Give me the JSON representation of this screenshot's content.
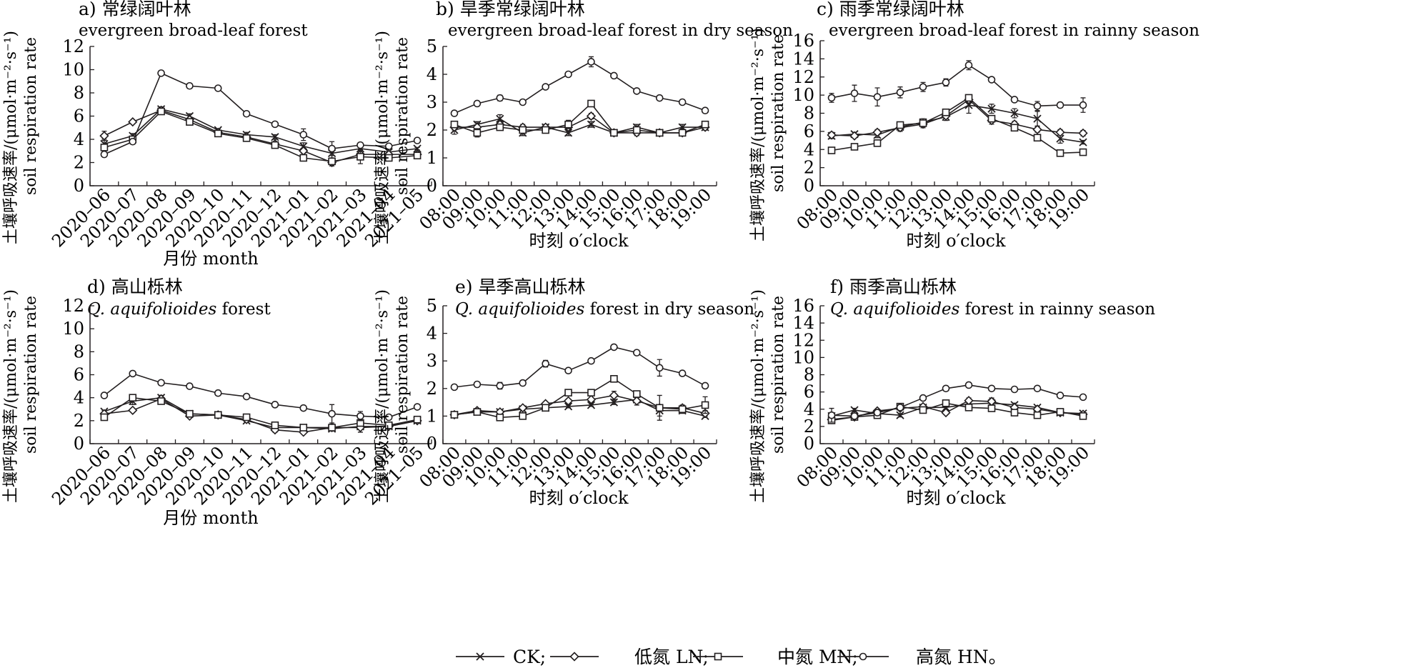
{
  "yaxis_label": {
    "line1": "土壤呼吸速率/(μmol·m⁻²·s⁻¹)",
    "line2": "soil respiration rate"
  },
  "legend": [
    {
      "marker": "cross",
      "text": "CK;"
    },
    {
      "marker": "diamond",
      "text": "低氮 LN;"
    },
    {
      "marker": "square",
      "text": "中氮 MN;"
    },
    {
      "marker": "circle",
      "text": "高氮 HN。"
    }
  ],
  "colors": {
    "ink": "#231f20",
    "background": "#ffffff"
  },
  "chart_data": [
    {
      "id": "a",
      "type": "line",
      "title": "a) 常绿阔叶林",
      "subtitle": "evergreen broad-leaf forest",
      "xlabel": "月份  month",
      "ylabel": "土壤呼吸速率/(μmol·m⁻²·s⁻¹) soil respiration rate",
      "ylim": [
        0,
        12
      ],
      "yticks": [
        0,
        2,
        4,
        6,
        8,
        10,
        12
      ],
      "categories": [
        "2020–06",
        "2020–07",
        "2020–08",
        "2020–09",
        "2020–10",
        "2020–11",
        "2020–12",
        "2021–01",
        "2021–02",
        "2021–03",
        "2021–04",
        "2021–05"
      ],
      "series": [
        {
          "name": "CK",
          "marker": "cross",
          "values": [
            3.6,
            4.3,
            6.6,
            6.0,
            4.8,
            4.4,
            4.2,
            3.4,
            2.8,
            3.2,
            2.9,
            3.2
          ],
          "err": [
            0.4,
            0.2,
            0.2,
            0.2,
            0.1,
            0.2,
            0.2,
            0.3,
            0.5,
            0.4,
            0.3,
            0.1
          ]
        },
        {
          "name": "LN",
          "marker": "diamond",
          "values": [
            4.3,
            5.5,
            6.5,
            5.7,
            4.6,
            4.2,
            3.6,
            3.0,
            2.0,
            2.7,
            2.7,
            2.7
          ],
          "err": [
            0.4,
            0.1,
            0.2,
            0.2,
            0.1,
            0.1,
            0.1,
            0.2,
            0.3,
            0.3,
            0.2,
            0.1
          ]
        },
        {
          "name": "MN",
          "marker": "square",
          "values": [
            3.3,
            4.0,
            6.4,
            5.5,
            4.5,
            4.1,
            3.5,
            2.4,
            2.1,
            2.5,
            2.4,
            2.6
          ],
          "err": [
            0.2,
            0.1,
            0.2,
            0.2,
            0.1,
            0.1,
            0.1,
            0.2,
            0.3,
            0.6,
            0.2,
            0.1
          ]
        },
        {
          "name": "HN",
          "marker": "circle",
          "values": [
            2.7,
            3.8,
            9.7,
            8.6,
            8.4,
            6.2,
            5.3,
            4.4,
            3.2,
            3.5,
            3.4,
            3.9
          ],
          "err": [
            0.1,
            0.1,
            0.1,
            0.1,
            0.1,
            0.1,
            0.1,
            0.5,
            0.6,
            0.2,
            0.1,
            0.1
          ]
        }
      ]
    },
    {
      "id": "b",
      "type": "line",
      "title": "b) 旱季常绿阔叶林",
      "subtitle": "evergreen broad-leaf forest in dry season",
      "xlabel": "时刻 o′clock",
      "ylabel": "土壤呼吸速率/(μmol·m⁻²·s⁻¹) soil respiration rate",
      "ylim": [
        0,
        5
      ],
      "yticks": [
        0,
        1,
        2,
        3,
        4,
        5
      ],
      "categories": [
        "08:00",
        "09:00",
        "10:00",
        "11:00",
        "12:00",
        "13:00",
        "14:00",
        "15:00",
        "16:00",
        "17:00",
        "18:00",
        "19:00"
      ],
      "series": [
        {
          "name": "CK",
          "marker": "cross",
          "values": [
            2.0,
            2.2,
            2.4,
            1.9,
            2.1,
            1.9,
            2.2,
            1.9,
            2.1,
            1.9,
            2.1,
            2.1
          ],
          "err": [
            0.15,
            0.1,
            0.15,
            0.1,
            0.1,
            0.1,
            0.1,
            0.1,
            0.1,
            0.1,
            0.1,
            0.1
          ]
        },
        {
          "name": "LN",
          "marker": "diamond",
          "values": [
            2.1,
            2.1,
            2.2,
            2.1,
            2.1,
            2.1,
            2.5,
            1.9,
            1.9,
            1.9,
            1.9,
            2.1
          ],
          "err": [
            0.1,
            0.15,
            0.1,
            0.1,
            0.1,
            0.1,
            0.1,
            0.1,
            0.1,
            0.1,
            0.1,
            0.1
          ]
        },
        {
          "name": "MN",
          "marker": "square",
          "values": [
            2.2,
            1.9,
            2.1,
            2.0,
            2.0,
            2.2,
            2.95,
            1.9,
            2.0,
            1.9,
            1.9,
            2.2
          ],
          "err": [
            0.1,
            0.15,
            0.1,
            0.1,
            0.1,
            0.15,
            0.1,
            0.1,
            0.1,
            0.1,
            0.1,
            0.1
          ]
        },
        {
          "name": "HN",
          "marker": "circle",
          "values": [
            2.6,
            2.95,
            3.15,
            3.0,
            3.55,
            4.0,
            4.45,
            3.95,
            3.4,
            3.15,
            3.0,
            2.7
          ],
          "err": [
            0.05,
            0.05,
            0.1,
            0.05,
            0.07,
            0.07,
            0.18,
            0.08,
            0.05,
            0.05,
            0.05,
            0.05
          ]
        }
      ]
    },
    {
      "id": "c",
      "type": "line",
      "title": "c) 雨季常绿阔叶林",
      "subtitle": "evergreen broad-leaf forest in rainny season",
      "xlabel": "时刻 o′clock",
      "ylabel": "土壤呼吸速率/(μmol·m⁻²·s⁻¹) soil respiration rate",
      "ylim": [
        0,
        16
      ],
      "yticks": [
        0,
        2,
        4,
        6,
        8,
        10,
        12,
        14,
        16
      ],
      "categories": [
        "08:00",
        "09:00",
        "10:00",
        "11:00",
        "12:00",
        "13:00",
        "14:00",
        "15:00",
        "16:00",
        "17:00",
        "18:00",
        "19:00"
      ],
      "series": [
        {
          "name": "CK",
          "marker": "cross",
          "values": [
            5.5,
            5.7,
            5.6,
            6.5,
            7.0,
            7.6,
            8.9,
            8.5,
            8.0,
            7.4,
            5.2,
            4.8
          ],
          "err": [
            0.3,
            0.2,
            0.3,
            0.4,
            0.4,
            0.4,
            0.9,
            0.5,
            0.5,
            0.8,
            0.5,
            0.2
          ]
        },
        {
          "name": "LN",
          "marker": "diamond",
          "values": [
            5.6,
            5.5,
            5.9,
            6.4,
            6.8,
            7.7,
            9.5,
            7.2,
            6.8,
            6.2,
            5.9,
            5.8
          ],
          "err": [
            0.3,
            0.2,
            0.3,
            0.4,
            0.4,
            0.3,
            0.3,
            0.4,
            0.3,
            0.3,
            0.3,
            0.3
          ]
        },
        {
          "name": "MN",
          "marker": "square",
          "values": [
            3.9,
            4.3,
            4.7,
            6.7,
            6.9,
            8.1,
            9.7,
            7.4,
            6.4,
            5.3,
            3.6,
            3.7
          ],
          "err": [
            0.1,
            0.1,
            0.1,
            0.2,
            0.2,
            0.2,
            0.2,
            0.3,
            0.2,
            0.2,
            0.1,
            0.1
          ]
        },
        {
          "name": "HN",
          "marker": "circle",
          "values": [
            9.7,
            10.2,
            9.8,
            10.3,
            10.9,
            11.4,
            13.3,
            11.7,
            9.5,
            8.8,
            8.9,
            8.9
          ],
          "err": [
            0.5,
            0.9,
            1.0,
            0.6,
            0.5,
            0.4,
            0.5,
            0.2,
            0.2,
            0.5,
            0.2,
            0.8
          ]
        }
      ]
    },
    {
      "id": "d",
      "type": "line",
      "title": "d) 高山栎林",
      "subtitle": "Q. aquifolioides forest",
      "xlabel": "月份  month",
      "ylabel": "土壤呼吸速率/(μmol·m⁻²·s⁻¹) soil respiration rate",
      "ylim": [
        0,
        12
      ],
      "yticks": [
        0,
        2,
        4,
        6,
        8,
        10,
        12
      ],
      "categories": [
        "2020–06",
        "2020–07",
        "2020–08",
        "2020–09",
        "2020–10",
        "2020–11",
        "2020–12",
        "2021–01",
        "2021–02",
        "2021–03",
        "2021–04",
        "2021–05"
      ],
      "series": [
        {
          "name": "CK",
          "marker": "cross",
          "values": [
            2.8,
            3.7,
            4.0,
            2.6,
            2.5,
            2.0,
            1.4,
            1.4,
            1.3,
            1.5,
            1.5,
            2.0
          ],
          "err": [
            0.1,
            0.3,
            0.2,
            0.1,
            0.1,
            0.1,
            0.2,
            0.1,
            0.2,
            0.2,
            0.1,
            0.1
          ]
        },
        {
          "name": "LN",
          "marker": "diamond",
          "values": [
            2.6,
            2.9,
            3.9,
            2.4,
            2.5,
            2.1,
            1.2,
            1.0,
            1.4,
            1.4,
            1.5,
            2.0
          ],
          "err": [
            0.1,
            0.1,
            0.2,
            0.1,
            0.1,
            0.1,
            0.2,
            0.1,
            0.1,
            0.4,
            0.1,
            0.1
          ]
        },
        {
          "name": "MN",
          "marker": "square",
          "values": [
            2.3,
            4.0,
            3.7,
            2.6,
            2.5,
            2.3,
            1.6,
            1.4,
            1.4,
            1.8,
            1.6,
            2.1
          ],
          "err": [
            0.1,
            0.2,
            0.2,
            0.1,
            0.1,
            0.1,
            0.2,
            0.1,
            0.1,
            0.2,
            0.1,
            0.1
          ]
        },
        {
          "name": "HN",
          "marker": "circle",
          "values": [
            4.2,
            6.1,
            5.3,
            5.0,
            4.4,
            4.1,
            3.4,
            3.1,
            2.6,
            2.4,
            2.3,
            3.2
          ],
          "err": [
            0.1,
            0.1,
            0.1,
            0.1,
            0.1,
            0.1,
            0.2,
            0.1,
            0.8,
            0.4,
            0.1,
            0.1
          ]
        }
      ]
    },
    {
      "id": "e",
      "type": "line",
      "title": "e) 旱季高山栎林",
      "subtitle": "Q. aquifolioides forest in dry season",
      "xlabel": "时刻 o′clock",
      "ylabel": "土壤呼吸速率/(μmol·m⁻²·s⁻¹) soil respiration rate",
      "ylim": [
        0,
        5
      ],
      "yticks": [
        0,
        1,
        2,
        3,
        4,
        5
      ],
      "categories": [
        "08:00",
        "09:00",
        "10:00",
        "11:00",
        "12:00",
        "13:00",
        "14:00",
        "15:00",
        "16:00",
        "17:00",
        "18:00",
        "19:00"
      ],
      "series": [
        {
          "name": "CK",
          "marker": "cross",
          "values": [
            1.05,
            1.15,
            1.15,
            1.25,
            1.3,
            1.35,
            1.4,
            1.5,
            1.6,
            1.2,
            1.2,
            1.0
          ],
          "err": [
            0.05,
            0.05,
            0.05,
            0.05,
            0.05,
            0.05,
            0.05,
            0.08,
            0.1,
            0.2,
            0.1,
            0.05
          ]
        },
        {
          "name": "LN",
          "marker": "diamond",
          "values": [
            1.05,
            1.2,
            1.15,
            1.3,
            1.45,
            1.55,
            1.6,
            1.75,
            1.55,
            1.3,
            1.3,
            1.1
          ],
          "err": [
            0.05,
            0.05,
            0.05,
            0.05,
            0.05,
            0.05,
            0.05,
            0.15,
            0.15,
            0.45,
            0.1,
            0.1
          ]
        },
        {
          "name": "MN",
          "marker": "square",
          "values": [
            1.05,
            1.15,
            0.95,
            1.0,
            1.3,
            1.85,
            1.85,
            2.35,
            1.8,
            1.3,
            1.25,
            1.4
          ],
          "err": [
            0.05,
            0.05,
            0.05,
            0.05,
            0.05,
            0.07,
            0.07,
            0.08,
            0.07,
            0.1,
            0.1,
            0.3
          ]
        },
        {
          "name": "HN",
          "marker": "circle",
          "values": [
            2.05,
            2.15,
            2.1,
            2.2,
            2.9,
            2.65,
            3.0,
            3.5,
            3.3,
            2.75,
            2.55,
            2.1
          ],
          "err": [
            0.05,
            0.05,
            0.12,
            0.05,
            0.12,
            0.05,
            0.05,
            0.05,
            0.05,
            0.3,
            0.05,
            0.05
          ]
        }
      ]
    },
    {
      "id": "f",
      "type": "line",
      "title": "f) 雨季高山栎林",
      "subtitle": "Q. aquifolioides forest in rainny season",
      "xlabel": "时刻 o′clock",
      "ylabel": "土壤呼吸速率/(μmol·m⁻²·s⁻¹) soil respiration rate",
      "ylim": [
        0,
        16
      ],
      "yticks": [
        0,
        2,
        4,
        6,
        8,
        10,
        12,
        14,
        16
      ],
      "categories": [
        "08:00",
        "09:00",
        "10:00",
        "11:00",
        "12:00",
        "13:00",
        "14:00",
        "15:00",
        "16:00",
        "17:00",
        "18:00",
        "19:00"
      ],
      "series": [
        {
          "name": "CK",
          "marker": "cross",
          "values": [
            3.2,
            3.9,
            3.5,
            3.3,
            4.2,
            4.2,
            4.6,
            4.7,
            4.5,
            4.2,
            3.6,
            3.5
          ],
          "err": [
            0.3,
            0.2,
            0.2,
            0.2,
            0.2,
            0.2,
            0.3,
            0.6,
            0.2,
            0.2,
            0.2,
            0.2
          ]
        },
        {
          "name": "LN",
          "marker": "diamond",
          "values": [
            2.8,
            3.1,
            3.8,
            4.1,
            4.3,
            3.6,
            5.0,
            4.9,
            4.2,
            4.0,
            3.6,
            3.4
          ],
          "err": [
            0.4,
            0.2,
            0.2,
            0.2,
            0.2,
            0.2,
            0.3,
            0.3,
            0.2,
            0.2,
            0.2,
            0.2
          ]
        },
        {
          "name": "MN",
          "marker": "square",
          "values": [
            2.7,
            3.1,
            3.3,
            4.3,
            3.9,
            4.7,
            4.2,
            4.1,
            3.6,
            3.3,
            3.7,
            3.2
          ],
          "err": [
            0.3,
            0.2,
            0.2,
            0.2,
            0.2,
            0.2,
            0.2,
            0.2,
            0.2,
            0.2,
            0.2,
            0.2
          ]
        },
        {
          "name": "HN",
          "marker": "circle",
          "values": [
            3.3,
            3.2,
            3.6,
            4.2,
            5.3,
            6.4,
            6.8,
            6.4,
            6.3,
            6.4,
            5.6,
            5.4
          ],
          "err": [
            0.8,
            0.2,
            0.2,
            0.2,
            0.2,
            0.2,
            0.2,
            0.2,
            0.2,
            0.2,
            0.2,
            0.2
          ]
        }
      ]
    }
  ]
}
